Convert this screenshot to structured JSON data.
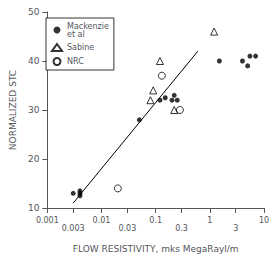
{
  "chart_data": {
    "type": "scatter",
    "xlabel": "FLOW RESISTIVITY, mks MegaRayl/m",
    "ylabel": "NORMALIZED STC",
    "log": "x",
    "xlim": [
      0.001,
      10
    ],
    "ylim": [
      10,
      50
    ],
    "xticks": [
      0.001,
      0.003,
      0.01,
      0.03,
      0.1,
      0.3,
      1,
      3,
      10
    ],
    "yticks": [
      10,
      20,
      30,
      40,
      50
    ],
    "grid": false,
    "legend": "upper left",
    "series": [
      {
        "name": "Mackenzie\net al",
        "color": "#000000",
        "marker": "filled_circle",
        "x": [
          0.003,
          0.004,
          0.004,
          0.004,
          0.05,
          0.12,
          0.15,
          0.2,
          0.22,
          0.25,
          1.5,
          4,
          5,
          5.5,
          7
        ],
        "values": [
          13,
          13,
          12.5,
          13.5,
          28,
          32,
          32.5,
          32,
          33,
          32,
          40,
          40,
          39,
          41,
          41
        ]
      },
      {
        "name": "Sabine",
        "color": "#000000",
        "marker": "open_triangle",
        "x": [
          0.08,
          0.09,
          0.12,
          0.22,
          1.2
        ],
        "values": [
          32,
          34,
          40,
          30,
          46
        ]
      },
      {
        "name": "NRC",
        "color": "#000000",
        "marker": "open_circle",
        "x": [
          0.02,
          0.13,
          0.28
        ],
        "values": [
          14,
          37,
          30
        ]
      },
      {
        "type": "line",
        "color": "#000000",
        "line_style": "solid",
        "x": [
          0.003,
          0.6
        ],
        "values": [
          11,
          42
        ]
      }
    ]
  }
}
